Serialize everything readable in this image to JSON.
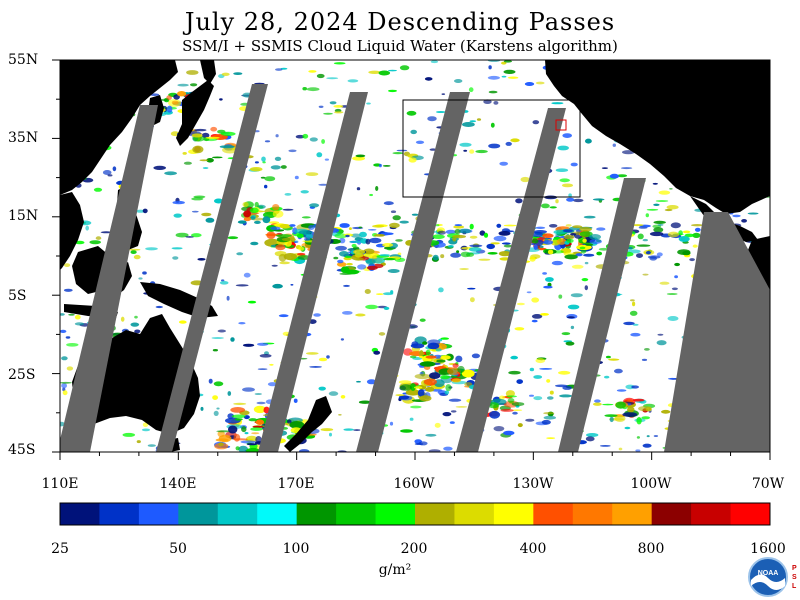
{
  "header": {
    "title": "July 28, 2024  Descending Passes",
    "subtitle": "SSM/I + SSMIS Cloud Liquid Water (Karstens algorithm)"
  },
  "axes": {
    "lat_labels": [
      "55N",
      "35N",
      "15N",
      "5S",
      "25S",
      "45S"
    ],
    "lon_labels": [
      "110E",
      "140E",
      "170E",
      "160W",
      "130W",
      "100W",
      "70W"
    ]
  },
  "colorbar": {
    "colors": [
      "#00127a",
      "#0032c8",
      "#1e5aff",
      "#00969b",
      "#00c8c8",
      "#00fafa",
      "#009600",
      "#00c800",
      "#00fa00",
      "#afaf00",
      "#dcdc00",
      "#ffff00",
      "#ff5000",
      "#ff7800",
      "#ffa000",
      "#8c0000",
      "#c80000",
      "#ff0000"
    ],
    "labels": [
      "25",
      "50",
      "100",
      "200",
      "400",
      "800",
      "1600"
    ],
    "unit": "g/m²"
  },
  "logo": {
    "text": "NOAA",
    "side_letters": "P S L"
  },
  "colors": {
    "land": "#000000",
    "no_data": "#646464",
    "ocean_clear": "#ffffff"
  }
}
